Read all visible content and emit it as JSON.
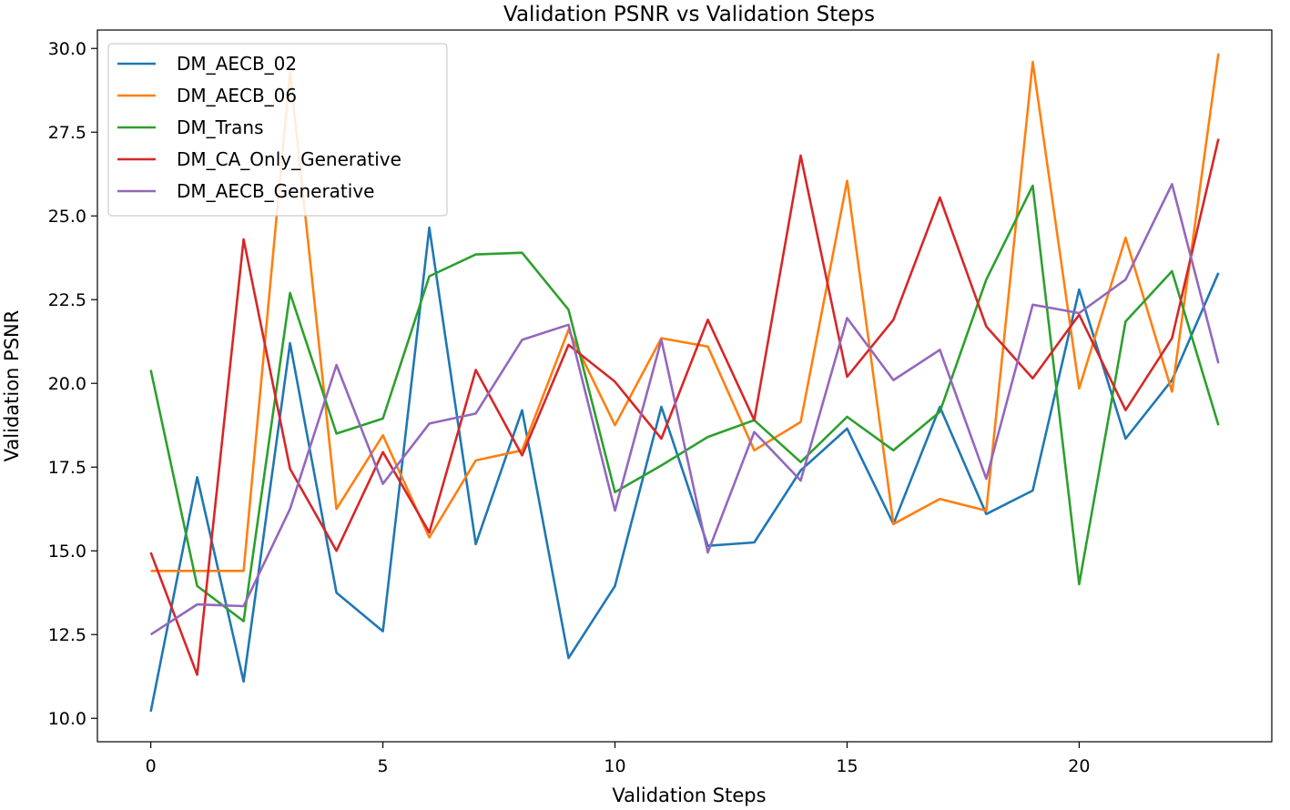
{
  "chart_data": {
    "type": "line",
    "title": "Validation PSNR vs Validation Steps",
    "xlabel": "Validation Steps",
    "ylabel": "Validation PSNR",
    "xlim": [
      -1.15,
      24.15
    ],
    "ylim": [
      9.3,
      30.55
    ],
    "xticks": [
      0,
      5,
      10,
      15,
      20
    ],
    "xtick_labels": [
      "0",
      "5",
      "10",
      "15",
      "20"
    ],
    "yticks": [
      10.0,
      12.5,
      15.0,
      17.5,
      20.0,
      22.5,
      25.0,
      27.5,
      30.0
    ],
    "ytick_labels": [
      "10.0",
      "12.5",
      "15.0",
      "17.5",
      "20.0",
      "22.5",
      "25.0",
      "27.5",
      "30.0"
    ],
    "grid": false,
    "legend_position": "top-left",
    "x": [
      0,
      1,
      2,
      3,
      4,
      5,
      6,
      7,
      8,
      9,
      10,
      11,
      12,
      13,
      14,
      15,
      16,
      17,
      18,
      19,
      20,
      21,
      22,
      23
    ],
    "series": [
      {
        "name": "DM_AECB_02",
        "color": "#1f77b4",
        "values": [
          10.2,
          17.2,
          11.1,
          21.2,
          13.75,
          12.6,
          24.65,
          15.2,
          19.2,
          11.8,
          13.95,
          19.3,
          15.15,
          15.25,
          17.4,
          18.65,
          15.8,
          19.3,
          16.1,
          16.8,
          22.8,
          18.35,
          20.1,
          23.3
        ]
      },
      {
        "name": "DM_AECB_06",
        "color": "#ff7f0e",
        "values": [
          14.4,
          14.4,
          14.4,
          29.3,
          16.25,
          18.45,
          15.4,
          17.7,
          18.0,
          21.6,
          18.75,
          21.35,
          21.1,
          18.0,
          18.85,
          26.05,
          15.8,
          16.55,
          16.2,
          29.6,
          19.85,
          24.35,
          19.75,
          29.85
        ]
      },
      {
        "name": "DM_Trans",
        "color": "#2ca02c",
        "values": [
          20.4,
          13.95,
          12.9,
          22.7,
          18.5,
          18.95,
          23.2,
          23.85,
          23.9,
          22.2,
          16.75,
          17.55,
          18.4,
          18.9,
          17.65,
          19.0,
          18.0,
          19.15,
          23.1,
          25.9,
          14.0,
          21.85,
          23.35,
          18.75
        ]
      },
      {
        "name": "DM_CA_Only_Generative",
        "color": "#d62728",
        "values": [
          14.95,
          11.3,
          24.3,
          17.45,
          15.0,
          17.95,
          15.55,
          20.4,
          17.85,
          21.15,
          20.05,
          18.35,
          21.9,
          18.9,
          26.8,
          20.2,
          21.9,
          25.55,
          21.7,
          20.15,
          22.05,
          19.2,
          21.35,
          27.3
        ]
      },
      {
        "name": "DM_AECB_Generative",
        "color": "#9467bd",
        "values": [
          12.5,
          13.4,
          13.35,
          16.25,
          20.55,
          17.0,
          18.8,
          19.1,
          21.3,
          21.75,
          16.2,
          21.3,
          14.95,
          18.55,
          17.1,
          21.95,
          20.1,
          21.0,
          17.15,
          22.35,
          22.1,
          23.1,
          25.95,
          20.6
        ]
      }
    ]
  }
}
